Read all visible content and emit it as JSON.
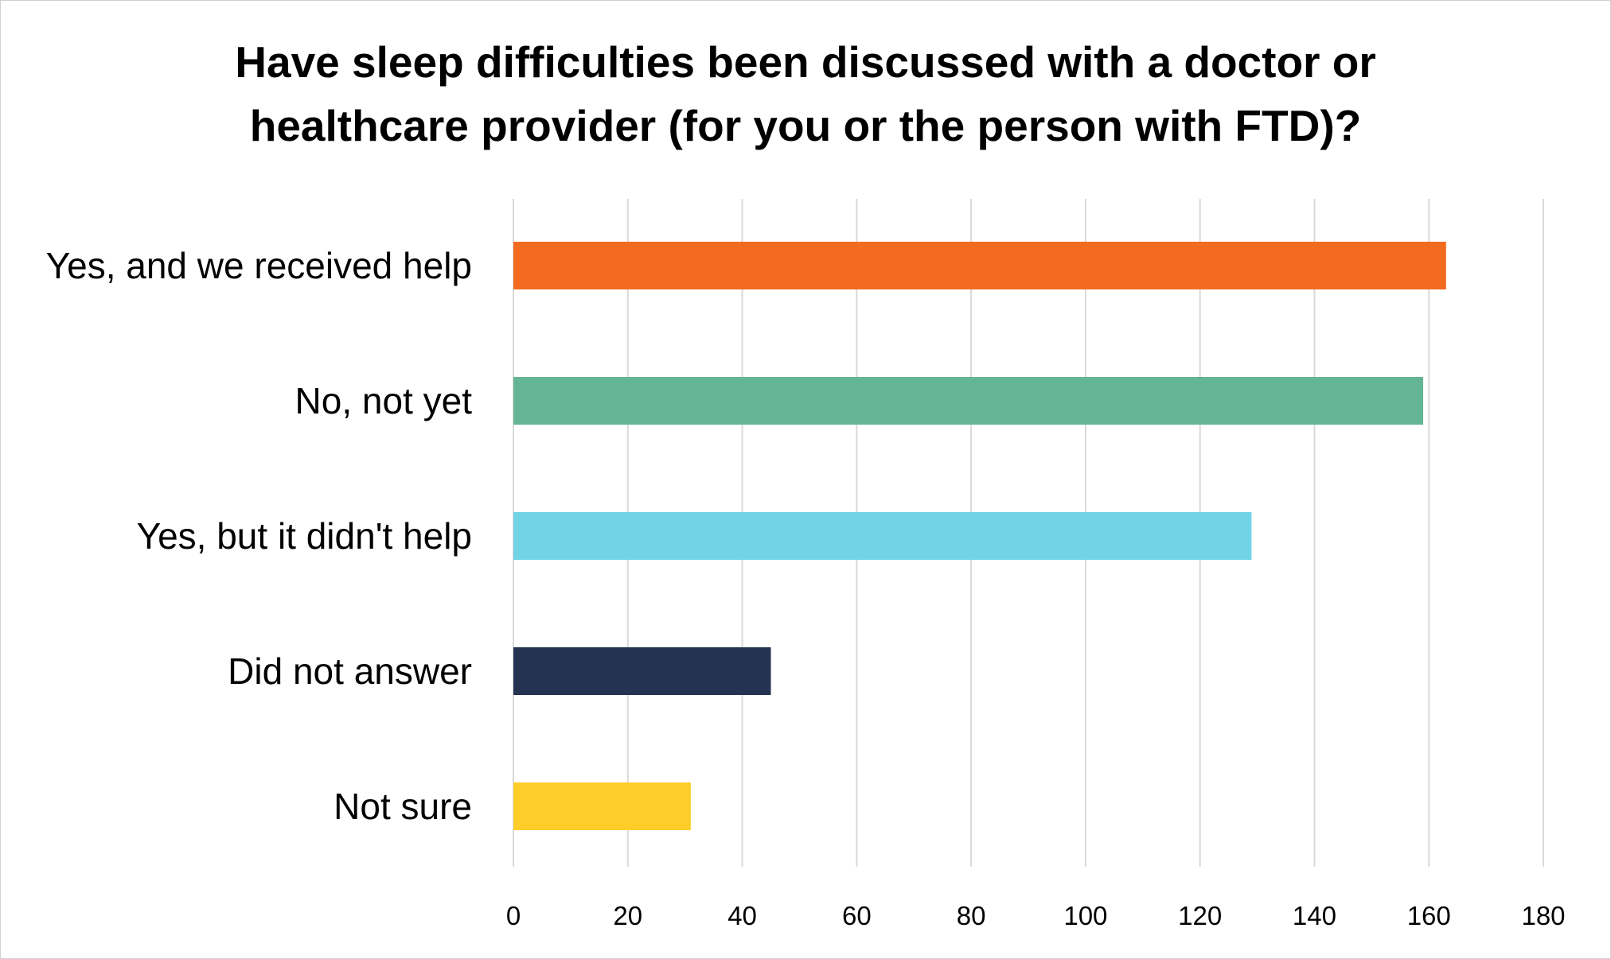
{
  "chart_data": {
    "type": "bar",
    "orientation": "horizontal",
    "title": "Have sleep difficulties been discussed with a doctor or\nhealthcare provider (for you or the person with FTD)?",
    "categories": [
      "Yes, and we received help",
      "No, not yet",
      "Yes, but it didn't help",
      "Did not answer",
      "Not sure"
    ],
    "values": [
      163,
      159,
      129,
      45,
      31
    ],
    "colors": [
      "#F26B21",
      "#64B595",
      "#70D4E6",
      "#243352",
      "#FFCD29"
    ],
    "xlim": [
      0,
      180
    ],
    "xticks": [
      0,
      20,
      40,
      60,
      80,
      100,
      120,
      140,
      160,
      180
    ],
    "xlabel": "",
    "ylabel": "",
    "grid": "vertical",
    "legend": "none"
  }
}
